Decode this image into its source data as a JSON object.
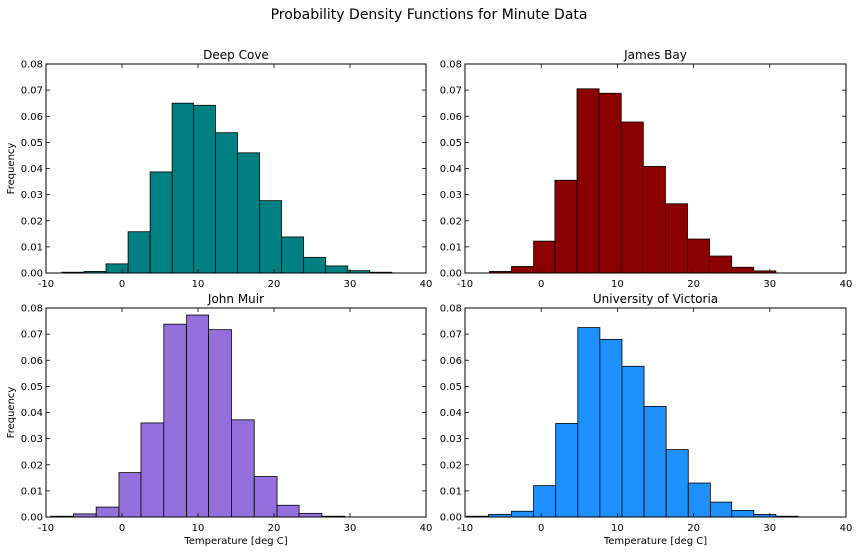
{
  "figure": {
    "suptitle": "Probability Density Functions for Minute Data"
  },
  "chart_data": [
    {
      "type": "bar",
      "subtype": "histogram",
      "title": "Deep Cove",
      "xlabel": "",
      "ylabel": "Frequency",
      "xlim": [
        -10,
        40
      ],
      "ylim": [
        0,
        0.08
      ],
      "xticks": [
        -10,
        0,
        10,
        20,
        30,
        40
      ],
      "yticks": [
        "0.00",
        "0.01",
        "0.02",
        "0.03",
        "0.04",
        "0.05",
        "0.06",
        "0.07",
        "0.08"
      ],
      "color": "#008080",
      "bin_edges": [
        -7.9,
        -5.0,
        -2.1,
        0.8,
        3.7,
        6.6,
        9.4,
        12.3,
        15.2,
        18.1,
        21.0,
        23.9,
        26.8,
        29.7,
        32.6,
        35.5
      ],
      "values": [
        0.0003,
        0.0006,
        0.0035,
        0.0158,
        0.0387,
        0.065,
        0.0642,
        0.0537,
        0.046,
        0.0277,
        0.0138,
        0.006,
        0.0027,
        0.0009,
        0.0003
      ],
      "grid": false
    },
    {
      "type": "bar",
      "subtype": "histogram",
      "title": "James Bay",
      "xlabel": "",
      "ylabel": "",
      "xlim": [
        -10,
        40
      ],
      "ylim": [
        0,
        0.08
      ],
      "xticks": [
        -10,
        0,
        10,
        20,
        30,
        40
      ],
      "yticks": [
        "0.00",
        "0.01",
        "0.02",
        "0.03",
        "0.04",
        "0.05",
        "0.06",
        "0.07",
        "0.08"
      ],
      "color": "#8b0000",
      "bin_edges": [
        -6.8,
        -3.9,
        -1.0,
        1.8,
        4.7,
        7.6,
        10.5,
        13.4,
        16.3,
        19.2,
        22.1,
        25.0,
        27.9,
        30.8
      ],
      "values": [
        0.0006,
        0.0025,
        0.0122,
        0.0355,
        0.0705,
        0.0688,
        0.0578,
        0.0408,
        0.0265,
        0.013,
        0.0065,
        0.0022,
        0.0008
      ],
      "grid": false
    },
    {
      "type": "bar",
      "subtype": "histogram",
      "title": "John Muir",
      "xlabel": "Temperature [deg C]",
      "ylabel": "Frequency",
      "xlim": [
        -10,
        40
      ],
      "ylim": [
        0,
        0.08
      ],
      "xticks": [
        -10,
        0,
        10,
        20,
        30,
        40
      ],
      "yticks": [
        "0.00",
        "0.01",
        "0.02",
        "0.03",
        "0.04",
        "0.05",
        "0.06",
        "0.07",
        "0.08"
      ],
      "color": "#9370db",
      "bin_edges": [
        -9.4,
        -6.4,
        -3.4,
        -0.4,
        2.5,
        5.5,
        8.5,
        11.4,
        14.4,
        17.4,
        20.4,
        23.3,
        26.3,
        29.3
      ],
      "values": [
        0.0003,
        0.0012,
        0.0038,
        0.017,
        0.036,
        0.0738,
        0.0773,
        0.0717,
        0.0372,
        0.0155,
        0.0045,
        0.0014,
        0.0003
      ],
      "grid": false
    },
    {
      "type": "bar",
      "subtype": "histogram",
      "title": "University of Victoria",
      "xlabel": "Temperature [deg C]",
      "ylabel": "",
      "xlim": [
        -10,
        40
      ],
      "ylim": [
        0,
        0.08
      ],
      "xticks": [
        -10,
        0,
        10,
        20,
        30,
        40
      ],
      "yticks": [
        "0.00",
        "0.01",
        "0.02",
        "0.03",
        "0.04",
        "0.05",
        "0.06",
        "0.07",
        "0.08"
      ],
      "color": "#1e90ff",
      "bin_edges": [
        -9.8,
        -6.9,
        -3.9,
        -1.0,
        1.9,
        4.8,
        7.7,
        10.6,
        13.5,
        16.4,
        19.3,
        22.2,
        25.0,
        27.9,
        30.8,
        33.7
      ],
      "values": [
        0.0003,
        0.001,
        0.0022,
        0.012,
        0.0358,
        0.0725,
        0.068,
        0.0577,
        0.0423,
        0.0258,
        0.013,
        0.0057,
        0.0025,
        0.001,
        0.0003
      ],
      "grid": false
    }
  ]
}
